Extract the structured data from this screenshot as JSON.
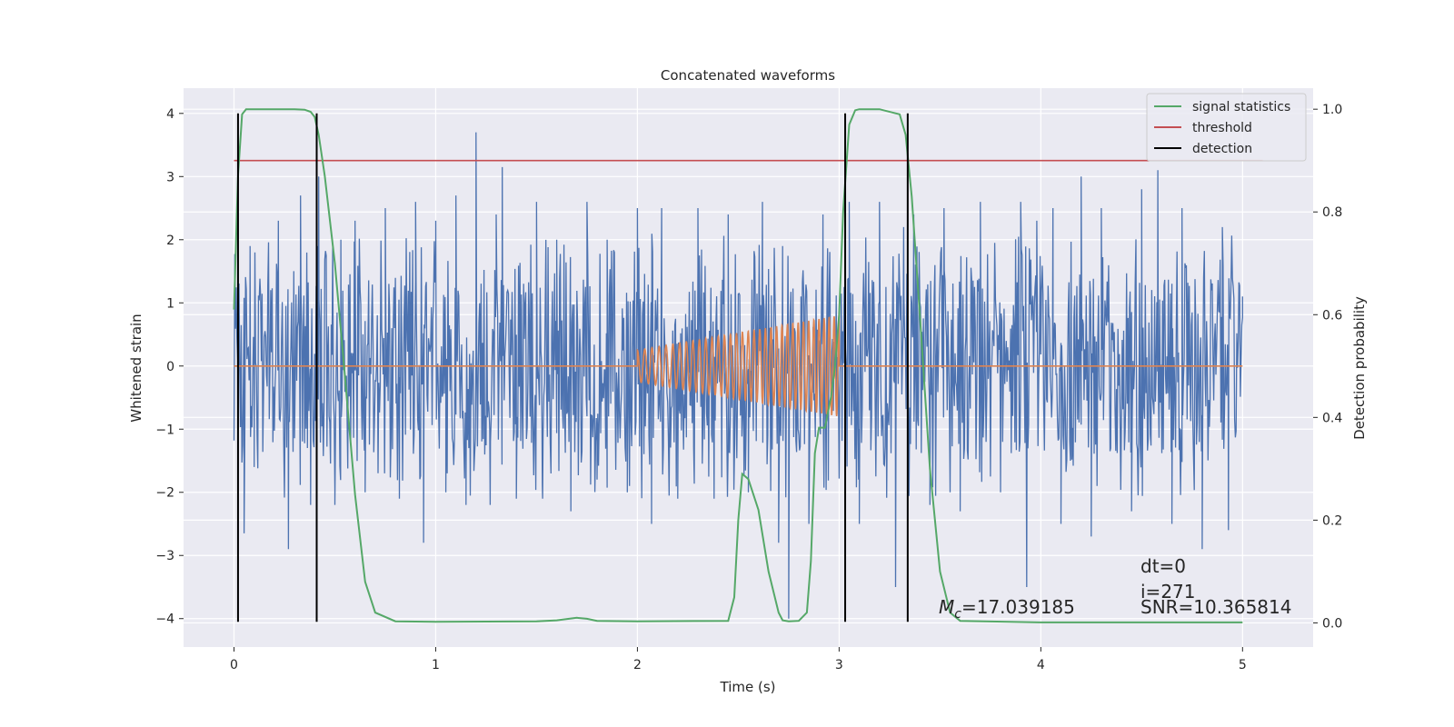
{
  "chart_data": {
    "type": "line",
    "title": "Concatenated waveforms",
    "xlabel": "Time (s)",
    "ylabel": "Whitened strain",
    "y2label": "Detection probability",
    "xlim": [
      -0.25,
      5.35
    ],
    "ylim": [
      -4.45,
      4.4
    ],
    "y2lim": [
      -0.047,
      1.041
    ],
    "xticks": [
      0,
      1,
      2,
      3,
      4,
      5
    ],
    "yticks": [
      -4,
      -3,
      -2,
      -1,
      0,
      1,
      2,
      3,
      4
    ],
    "y2ticks": [
      0.0,
      0.2,
      0.4,
      0.6,
      0.8,
      1.0
    ],
    "xtick_labels": [
      "0",
      "1",
      "2",
      "3",
      "4",
      "5"
    ],
    "ytick_labels": [
      "−4",
      "−3",
      "−2",
      "−1",
      "0",
      "1",
      "2",
      "3",
      "4"
    ],
    "y2tick_labels": [
      "0.0",
      "0.2",
      "0.4",
      "0.6",
      "0.8",
      "1.0"
    ],
    "grid": true,
    "legend_position": "top-right",
    "colors": {
      "background": "#eaeaf2",
      "grid": "#ffffff",
      "strain": "#4c72b0",
      "template": "#dd8452",
      "signal_statistics": "#55a868",
      "threshold": "#c44e52",
      "detection": "#000000"
    },
    "series": [
      {
        "name": "signal statistics",
        "axis": "right",
        "x": [
          0,
          0.02,
          0.04,
          0.06,
          0.1,
          0.2,
          0.3,
          0.35,
          0.38,
          0.4,
          0.42,
          0.45,
          0.5,
          0.55,
          0.6,
          0.65,
          0.7,
          0.8,
          1.0,
          1.5,
          1.6,
          1.7,
          1.75,
          1.8,
          2.0,
          2.45,
          2.48,
          2.5,
          2.52,
          2.55,
          2.6,
          2.65,
          2.7,
          2.72,
          2.75,
          2.8,
          2.84,
          2.86,
          2.88,
          2.9,
          2.93,
          2.96,
          2.98,
          3.0,
          3.02,
          3.05,
          3.08,
          3.1,
          3.2,
          3.3,
          3.33,
          3.36,
          3.4,
          3.45,
          3.5,
          3.55,
          3.6,
          4.0,
          5.0
        ],
        "values": [
          0.61,
          0.87,
          0.99,
          1.0,
          1.0,
          1.0,
          1.0,
          0.999,
          0.995,
          0.985,
          0.95,
          0.87,
          0.7,
          0.48,
          0.25,
          0.08,
          0.02,
          0.003,
          0.002,
          0.003,
          0.005,
          0.01,
          0.008,
          0.004,
          0.003,
          0.004,
          0.05,
          0.2,
          0.29,
          0.28,
          0.22,
          0.1,
          0.02,
          0.005,
          0.003,
          0.004,
          0.02,
          0.12,
          0.33,
          0.38,
          0.38,
          0.44,
          0.5,
          0.6,
          0.8,
          0.97,
          0.998,
          1.0,
          1.0,
          0.99,
          0.95,
          0.83,
          0.6,
          0.3,
          0.1,
          0.02,
          0.004,
          0.001,
          0.001
        ]
      },
      {
        "name": "threshold",
        "axis": "right",
        "x": [
          0,
          5.1
        ],
        "values": [
          0.9,
          0.9
        ]
      },
      {
        "name": "detection",
        "axis": "left",
        "x": [
          0.02,
          0.41,
          3.03,
          3.34
        ],
        "range": [
          -4.05,
          4.0
        ]
      }
    ],
    "strain": {
      "x_range": [
        0,
        5
      ],
      "band": [
        -0.85,
        0.78
      ],
      "peaks": [
        [
          0.02,
          -1.75
        ],
        [
          0.05,
          -2.65
        ],
        [
          0.08,
          1.9
        ],
        [
          0.1,
          -1.6
        ],
        [
          0.22,
          2.3
        ],
        [
          0.27,
          -2.9
        ],
        [
          0.33,
          2.7
        ],
        [
          0.38,
          -2.2
        ],
        [
          0.42,
          3.0
        ],
        [
          0.5,
          -2.2
        ],
        [
          0.53,
          2.0
        ],
        [
          0.6,
          2.3
        ],
        [
          0.65,
          -2.0
        ],
        [
          0.75,
          2.5
        ],
        [
          0.82,
          -2.1
        ],
        [
          0.9,
          2.6
        ],
        [
          0.94,
          -2.8
        ],
        [
          1.0,
          2.3
        ],
        [
          1.05,
          -2.0
        ],
        [
          1.1,
          2.7
        ],
        [
          1.15,
          -2.2
        ],
        [
          1.2,
          3.7
        ],
        [
          1.27,
          -2.2
        ],
        [
          1.3,
          2.4
        ],
        [
          1.33,
          3.15
        ],
        [
          1.4,
          -2.1
        ],
        [
          1.5,
          2.6
        ],
        [
          1.53,
          -2.1
        ],
        [
          1.6,
          2.0
        ],
        [
          1.67,
          -2.3
        ],
        [
          1.75,
          2.6
        ],
        [
          1.8,
          -1.8
        ],
        [
          1.85,
          2.0
        ],
        [
          1.95,
          -2.0
        ],
        [
          2.0,
          2.5
        ],
        [
          2.07,
          -2.5
        ],
        [
          2.12,
          2.5
        ],
        [
          2.2,
          -2.1
        ],
        [
          2.3,
          2.5
        ],
        [
          2.38,
          -2.1
        ],
        [
          2.45,
          2.4
        ],
        [
          2.55,
          -2.0
        ],
        [
          2.62,
          2.6
        ],
        [
          2.7,
          -2.8
        ],
        [
          2.72,
          1.9
        ],
        [
          2.75,
          -4.0
        ],
        [
          2.85,
          -2.5
        ],
        [
          2.92,
          2.4
        ],
        [
          3.05,
          2.6
        ],
        [
          3.1,
          -2.5
        ],
        [
          3.2,
          2.6
        ],
        [
          3.28,
          -3.5
        ],
        [
          3.32,
          2.2
        ],
        [
          3.37,
          2.4
        ],
        [
          3.45,
          -2.2
        ],
        [
          3.52,
          2.5
        ],
        [
          3.6,
          -2.3
        ],
        [
          3.7,
          2.6
        ],
        [
          3.8,
          -2.0
        ],
        [
          3.9,
          2.6
        ],
        [
          3.93,
          -3.5
        ],
        [
          3.98,
          2.3
        ],
        [
          4.06,
          2.5
        ],
        [
          4.1,
          -2.5
        ],
        [
          4.2,
          3.0
        ],
        [
          4.25,
          -2.7
        ],
        [
          4.3,
          2.5
        ],
        [
          4.45,
          -2.3
        ],
        [
          4.5,
          2.8
        ],
        [
          4.58,
          3.1
        ],
        [
          4.65,
          -2.5
        ],
        [
          4.7,
          2.5
        ],
        [
          4.8,
          -2.9
        ],
        [
          4.9,
          2.2
        ],
        [
          4.93,
          -2.6
        ],
        [
          5.0,
          1.1
        ]
      ]
    },
    "template": {
      "x_range": [
        2.0,
        3.0
      ],
      "amplitude": [
        0.25,
        0.8
      ],
      "cycles": 34
    },
    "annotations": {
      "mc": "=17.039185",
      "dt": "dt=0",
      "i": "i=271",
      "snr": "SNR=10.365814"
    }
  }
}
